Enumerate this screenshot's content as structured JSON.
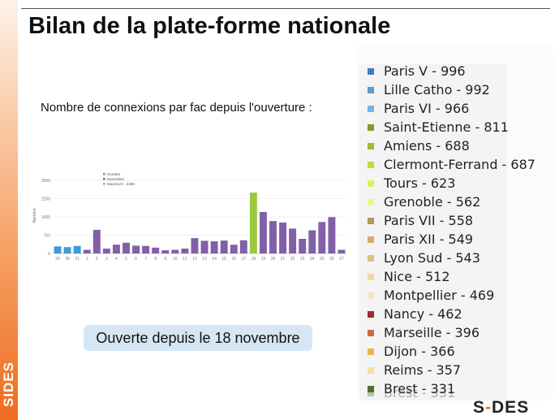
{
  "title": "Bilan de la plate-forme nationale",
  "subtitle": "Nombre de connexions par fac depuis l'ouverture :",
  "side_label": "SIDES",
  "open_note": "Ouverte depuis le 18 novembre",
  "logo": {
    "part1": "S",
    "part2": "DES"
  },
  "legend": {
    "items": [
      {
        "label": "Paris V - 996",
        "color": "#3f7db5"
      },
      {
        "label": "Lille Catho - 992",
        "color": "#5f98c9"
      },
      {
        "label": "Paris VI - 966",
        "color": "#7eb3de"
      },
      {
        "label": "Saint-Etienne - 811",
        "color": "#7f9b2a"
      },
      {
        "label": "Amiens - 688",
        "color": "#9bbd35"
      },
      {
        "label": "Clermont-Ferrand - 687",
        "color": "#bfdc3e"
      },
      {
        "label": "Tours - 623",
        "color": "#dcef5e"
      },
      {
        "label": "Grenoble - 562",
        "color": "#f2f28c"
      },
      {
        "label": "Paris VII - 558",
        "color": "#b39952"
      },
      {
        "label": "Paris XII - 549",
        "color": "#cdb166"
      },
      {
        "label": "Lyon Sud - 543",
        "color": "#ddc27a"
      },
      {
        "label": "Nice - 512",
        "color": "#ecd9a5"
      },
      {
        "label": "Montpellier - 469",
        "color": "#f3e6c2"
      },
      {
        "label": "Nancy - 462",
        "color": "#a52a2a"
      },
      {
        "label": "Marseille - 396",
        "color": "#c96b4a"
      },
      {
        "label": "Dijon - 366",
        "color": "#e8b44c"
      },
      {
        "label": "Reims - 357",
        "color": "#f1e0b0"
      },
      {
        "label": "Brest - 331",
        "color": "#4e6b3a"
      }
    ],
    "ghost": {
      "label": "Brest - 331",
      "color": "#4e6b3a"
    }
  },
  "chart_data": {
    "type": "bar",
    "title": "",
    "xlabel": "",
    "ylabel": "Nombre",
    "ylim": [
      0,
      3000
    ],
    "yticks": [
      "0",
      "750",
      "1500",
      "2250",
      "3000"
    ],
    "categories": [
      "29",
      "30",
      "31",
      "1",
      "2",
      "3",
      "4",
      "5",
      "6",
      "7",
      "8",
      "9",
      "10",
      "11",
      "12",
      "13",
      "14",
      "15",
      "16",
      "17",
      "18",
      "19",
      "20",
      "21",
      "22",
      "23",
      "24",
      "25",
      "26",
      "27"
    ],
    "values": [
      290,
      260,
      310,
      150,
      970,
      200,
      360,
      440,
      320,
      310,
      240,
      130,
      150,
      200,
      630,
      520,
      500,
      530,
      360,
      540,
      2498,
      1700,
      1330,
      1270,
      1020,
      600,
      950,
      1290,
      1490,
      150
    ],
    "groups": [
      "Octobre",
      "Octobre",
      "Octobre",
      "Novembre",
      "Novembre",
      "Novembre",
      "Novembre",
      "Novembre",
      "Novembre",
      "Novembre",
      "Novembre",
      "Novembre",
      "Novembre",
      "Novembre",
      "Novembre",
      "Novembre",
      "Novembre",
      "Novembre",
      "Novembre",
      "Novembre",
      "Maximum",
      "Novembre",
      "Novembre",
      "Novembre",
      "Novembre",
      "Novembre",
      "Novembre",
      "Novembre",
      "Novembre",
      "Novembre"
    ],
    "legend": [
      {
        "name": "Octobre",
        "color": "#3d9bd6"
      },
      {
        "name": "Novembre",
        "color": "#8160a8"
      },
      {
        "name": "Maximum : 2498",
        "color": "#9cc83e"
      }
    ],
    "grid": true,
    "legend_position": "top-center"
  }
}
